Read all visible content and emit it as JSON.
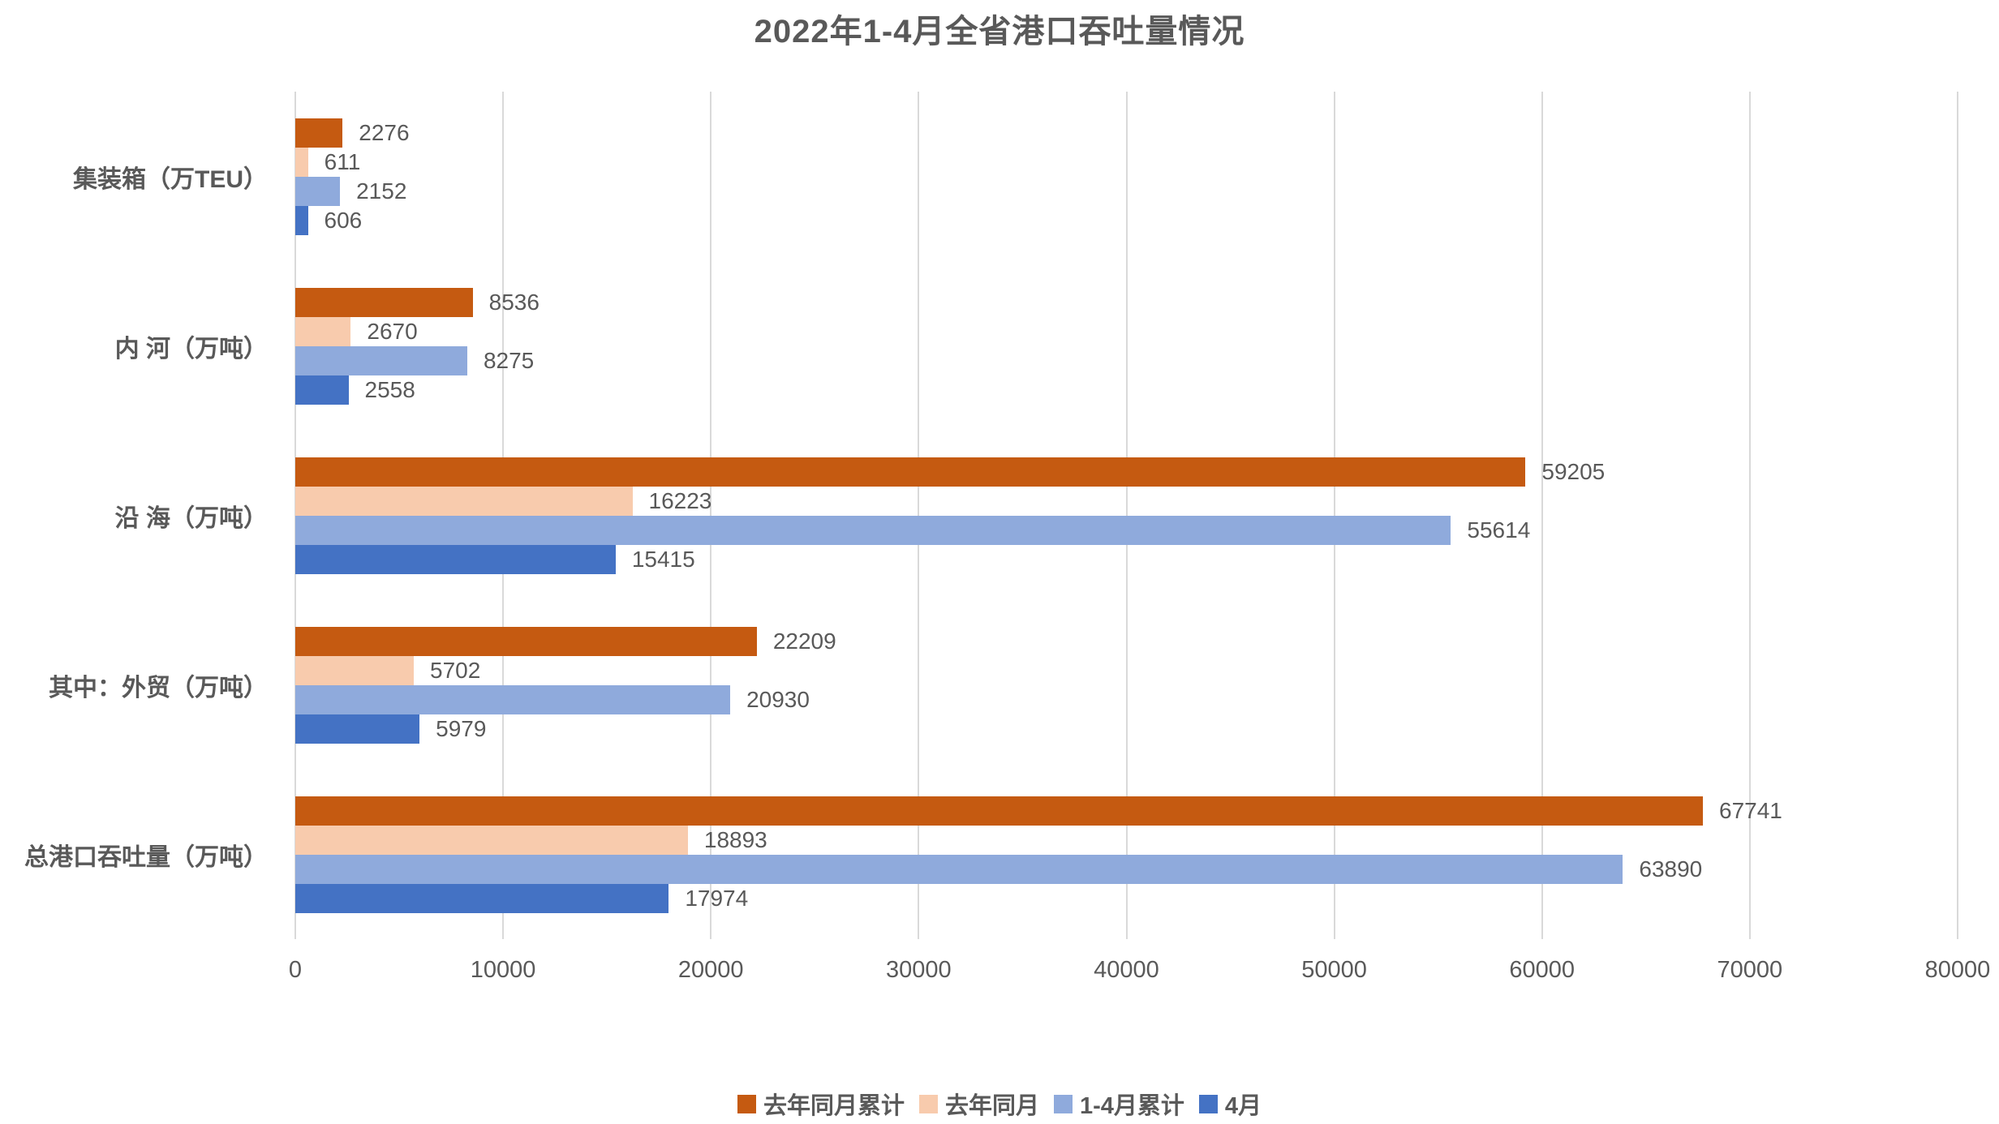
{
  "title": "2022年1-4月全省港口吞吐量情况",
  "chart_data": {
    "type": "bar",
    "orientation": "horizontal",
    "title": "2022年1-4月全省港口吞吐量情况",
    "categories": [
      "集装箱（万TEU）",
      "内 河（万吨）",
      "沿 海（万吨）",
      "其中：外贸（万吨）",
      "总港口吞吐量（万吨）"
    ],
    "series": [
      {
        "name": "去年同月累计",
        "color": "#C55A11",
        "values": [
          2276,
          8536,
          59205,
          22209,
          67741
        ]
      },
      {
        "name": "去年同月",
        "color": "#F8CBAD",
        "values": [
          611,
          2670,
          16223,
          5702,
          18893
        ]
      },
      {
        "name": "1-4月累计",
        "color": "#8FAADC",
        "values": [
          2152,
          8275,
          55614,
          20930,
          63890
        ]
      },
      {
        "name": "4月",
        "color": "#4472C4",
        "values": [
          606,
          2558,
          15415,
          5979,
          17974
        ]
      }
    ],
    "x_axis": {
      "min": 0,
      "max": 80000,
      "tick_interval": 10000,
      "ticks": [
        0,
        10000,
        20000,
        30000,
        40000,
        50000,
        60000,
        70000,
        80000
      ],
      "tick_labels": [
        "0",
        "10000",
        "20000",
        "30000",
        "40000",
        "50000",
        "60000",
        "70000",
        "80000"
      ]
    },
    "grid": true,
    "legend_position": "bottom",
    "colors": {
      "text": "#595959",
      "gridline": "#D9D9D9",
      "background": "#FFFFFF"
    }
  }
}
